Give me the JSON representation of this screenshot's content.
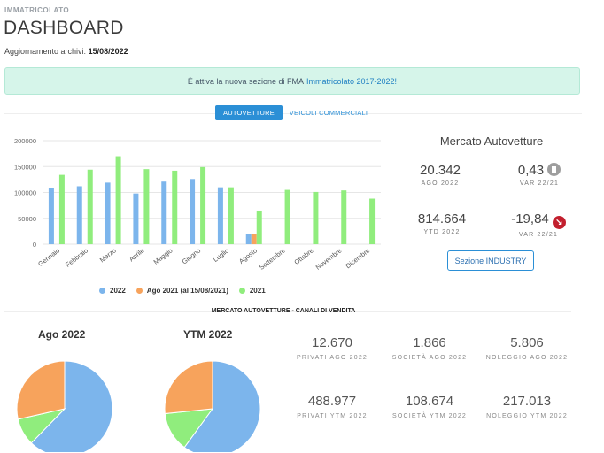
{
  "header": {
    "eyebrow": "IMMATRICOLATO",
    "title": "DASHBOARD",
    "update_label": "Aggiornamento archivi:",
    "update_date": "15/08/2022"
  },
  "alert": {
    "text": "È attiva la nuova sezione di FMA",
    "link": "Immatricolato 2017-2022!"
  },
  "tabs": [
    {
      "label": "AUTOVETTURE",
      "active": true
    },
    {
      "label": "VEICOLI COMMERCIALI",
      "active": false
    }
  ],
  "colors": {
    "series_2022": "#7cb5ec",
    "series_ago2021": "#f7a35c",
    "series_2021": "#90ed7d",
    "accent": "#2b8fd6",
    "negative": "#c21f2e"
  },
  "chart_data": {
    "type": "bar",
    "categories": [
      "Gennaio",
      "Febbraio",
      "Marzo",
      "Aprile",
      "Maggio",
      "Giugno",
      "Luglio",
      "Agosto",
      "Settembre",
      "Ottobre",
      "Novembre",
      "Dicembre"
    ],
    "series": [
      {
        "name": "2022",
        "values": [
          108000,
          112000,
          119000,
          98000,
          121000,
          126000,
          110000,
          20342,
          null,
          null,
          null,
          null
        ]
      },
      {
        "name": "Ago 2021 (al 15/08/2021)",
        "values": [
          null,
          null,
          null,
          null,
          null,
          null,
          null,
          20255,
          null,
          null,
          null,
          null
        ]
      },
      {
        "name": "2021",
        "values": [
          134000,
          144000,
          170000,
          145000,
          142000,
          149000,
          110000,
          65000,
          105000,
          101000,
          104000,
          88000
        ]
      }
    ],
    "yticks": [
      "0",
      "50000",
      "100000",
      "150000",
      "200000"
    ],
    "ylim": [
      0,
      200000
    ],
    "grid": true,
    "legend_position": "bottom"
  },
  "market": {
    "title": "Mercato Autovetture",
    "stats": [
      {
        "value": "20.342",
        "label": "AGO 2022"
      },
      {
        "value": "0,43",
        "label": "VAR 22/21",
        "icon": "pause-icon"
      },
      {
        "value": "814.664",
        "label": "YTD 2022"
      },
      {
        "value": "-19,84",
        "label": "VAR 22/21",
        "icon": "arrow-down-right-icon"
      }
    ],
    "industry_button": "Sezione INDUSTRY"
  },
  "channels": {
    "title": "MERCATO AUTOVETTURE - CANALI DI VENDITA",
    "pie1_title": "Ago 2022",
    "pie2_title": "YTM 2022",
    "pie1": [
      {
        "name": "PRIVATI AGO 2022",
        "value": 12670
      },
      {
        "name": "SOCIETÀ AGO 2022",
        "value": 1866
      },
      {
        "name": "NOLEGGIO AGO 2022",
        "value": 5806
      }
    ],
    "pie2": [
      {
        "name": "PRIVATI YTM 2022",
        "value": 488977
      },
      {
        "name": "SOCIETÀ YTM 2022",
        "value": 108674
      },
      {
        "name": "NOLEGGIO YTM 2022",
        "value": 217013
      }
    ],
    "cells": [
      {
        "value": "12.670",
        "label": "PRIVATI AGO 2022"
      },
      {
        "value": "1.866",
        "label": "SOCIETÀ AGO 2022"
      },
      {
        "value": "5.806",
        "label": "NOLEGGIO AGO 2022"
      },
      {
        "value": "488.977",
        "label": "PRIVATI YTM 2022"
      },
      {
        "value": "108.674",
        "label": "SOCIETÀ YTM 2022"
      },
      {
        "value": "217.013",
        "label": "NOLEGGIO YTM 2022"
      }
    ]
  }
}
